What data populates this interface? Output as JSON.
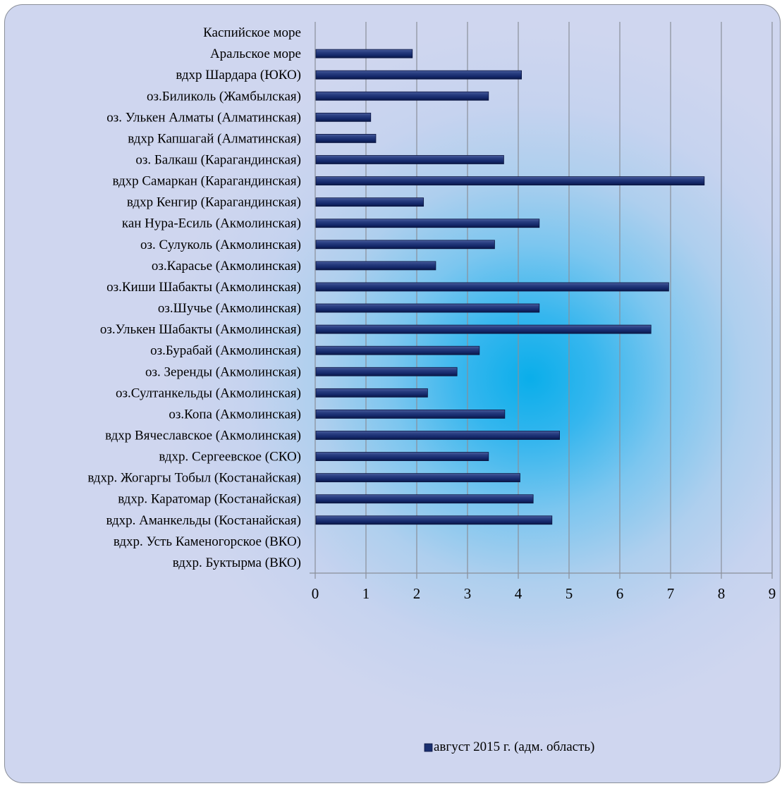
{
  "chart_data": {
    "type": "bar",
    "orientation": "horizontal",
    "categories": [
      "Каспийское море",
      "Аральское море",
      "вдхр Шардара (ЮКО)",
      "оз.Биликоль (Жамбылская)",
      "оз. Улькен Алматы (Алматинская)",
      "вдхр Капшагай (Алматинская)",
      "оз. Балкаш (Карагандинская)",
      "вдхр Самаркан (Карагандинская)",
      "вдхр Кенгир (Карагандинская)",
      "кан Нура-Есиль (Акмолинская)",
      "оз. Сулуколь (Акмолинская)",
      "оз.Карасье (Акмолинская)",
      "оз.Киши Шабакты (Акмолинская)",
      "оз.Шучье (Акмолинская)",
      "оз.Улькен Шабакты (Акмолинская)",
      "оз.Бурабай (Акмолинская)",
      "оз. Зеренды (Акмолинская)",
      "оз.Султанкельды  (Акмолинская)",
      "оз.Копа  (Акмолинская)",
      "вдхр Вячеславское (Акмолинская)",
      "вдхр. Сергеевское  (СКО)",
      "вдхр. Жогаргы Тобыл (Костанайская)",
      "вдхр. Каратомар (Костанайская)",
      "вдхр. Аманкельды (Костанайская)",
      "вдхр. Усть Каменогорское (ВКО)",
      "вдхр. Буктырма (ВКО)"
    ],
    "series": [
      {
        "name": "август 2015 г. (адм. область)",
        "values": [
          0,
          1.9,
          4.05,
          3.4,
          1.08,
          1.18,
          3.7,
          7.65,
          2.12,
          4.4,
          3.52,
          2.36,
          6.95,
          4.4,
          6.6,
          3.22,
          2.78,
          2.2,
          3.72,
          4.8,
          3.4,
          4.02,
          4.28,
          4.65,
          0,
          0
        ]
      }
    ],
    "title": "",
    "xlabel": "",
    "ylabel": "",
    "xlim": [
      0,
      9
    ],
    "xticks": [
      "0",
      "1",
      "2",
      "3",
      "4",
      "5",
      "6",
      "7",
      "8",
      "9"
    ],
    "grid": true,
    "legend_position": "bottom",
    "colors": {
      "bar_fill": "#1a2f70",
      "bar_edge": "#0a1440",
      "grid": "#8a8f99"
    }
  }
}
